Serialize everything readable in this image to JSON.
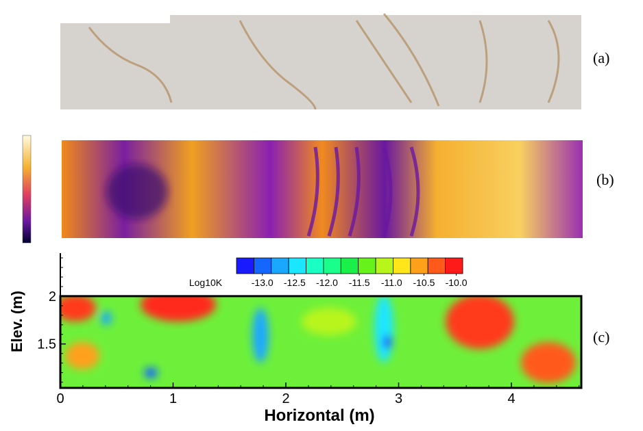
{
  "panel_labels": [
    "(a)",
    "(b)",
    "(c)"
  ],
  "chart_data": {
    "type": "contour",
    "xlabel": "Horizontal (m)",
    "ylabel": "Elev. (m)",
    "xlim": [
      0,
      4.62
    ],
    "ylim": [
      1.04,
      2.45
    ],
    "xticks": [
      0,
      1,
      2,
      3,
      4
    ],
    "yticks": [
      1.5,
      2
    ],
    "field_top": 2,
    "colorbar": {
      "label": "Log10K",
      "lim": [
        -13.4,
        -9.9
      ],
      "colors": [
        "#1a1aff",
        "#1466ff",
        "#1aa8ff",
        "#1ae6ff",
        "#1affc4",
        "#1aff8c",
        "#1aef4a",
        "#66f21a",
        "#b8f51a",
        "#ffe61a",
        "#ffa01a",
        "#ff5a1a",
        "#ff1a1a"
      ],
      "ticks": [
        {
          "value": -13,
          "label": "-13.0"
        },
        {
          "value": -12.5,
          "label": "-12.5"
        },
        {
          "value": -12,
          "label": "-12.0"
        },
        {
          "value": -11.5,
          "label": "-11.5"
        },
        {
          "value": -11,
          "label": "-11.0"
        },
        {
          "value": -10.5,
          "label": "-10.5"
        },
        {
          "value": -10,
          "label": "-10.0"
        }
      ]
    }
  }
}
